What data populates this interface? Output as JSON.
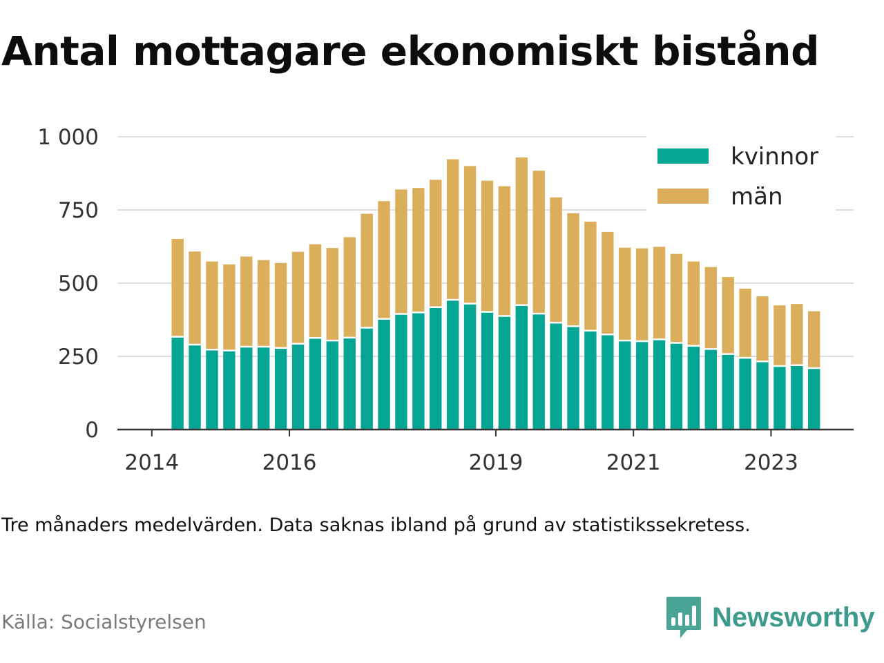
{
  "title": "Antal mottagare ekonomiskt bistånd",
  "note": "Tre månaders medelvärden. Data saknas ibland på grund av statistikssekretess.",
  "source": "Källa: Socialstyrelsen",
  "brand": {
    "name": "Newsworthy",
    "icon": "newsworthy-logo-icon"
  },
  "colors": {
    "kvinnor": "#05a594",
    "man": "#dbae5c",
    "grid": "#dddddd",
    "axis": "#333333",
    "tick_text": "#333333"
  },
  "chart_data": {
    "type": "bar",
    "stacked": true,
    "x_ticks": [
      "2014",
      "2016",
      "2019",
      "2021",
      "2023"
    ],
    "y_ticks": [
      "0",
      "250",
      "500",
      "750",
      "1 000"
    ],
    "ylim": [
      0,
      1000
    ],
    "grid": true,
    "legend_position": "top-right",
    "x": [
      2014.375,
      2014.625,
      2014.875,
      2015.125,
      2015.375,
      2015.625,
      2015.875,
      2016.125,
      2016.375,
      2016.625,
      2016.875,
      2017.125,
      2017.375,
      2017.625,
      2017.875,
      2018.125,
      2018.375,
      2018.625,
      2018.875,
      2019.125,
      2019.375,
      2019.625,
      2019.875,
      2020.125,
      2020.375,
      2020.625,
      2020.875,
      2021.125,
      2021.375,
      2021.625,
      2021.875,
      2022.125,
      2022.375,
      2022.625,
      2022.875,
      2023.125,
      2023.375,
      2023.625
    ],
    "series": [
      {
        "name": "kvinnor",
        "values": [
          317,
          290,
          273,
          270,
          283,
          283,
          279,
          293,
          313,
          304,
          314,
          348,
          378,
          395,
          400,
          418,
          443,
          430,
          402,
          388,
          425,
          396,
          365,
          353,
          338,
          325,
          304,
          302,
          308,
          296,
          286,
          275,
          258,
          245,
          233,
          217,
          220,
          210
        ]
      },
      {
        "name": "män",
        "values": [
          334,
          318,
          301,
          294,
          308,
          296,
          290,
          314,
          320,
          316,
          343,
          389,
          402,
          425,
          425,
          435,
          480,
          470,
          448,
          443,
          504,
          488,
          428,
          386,
          372,
          350,
          317,
          317,
          316,
          304,
          288,
          280,
          263,
          236,
          222,
          207,
          209,
          194
        ]
      }
    ]
  }
}
